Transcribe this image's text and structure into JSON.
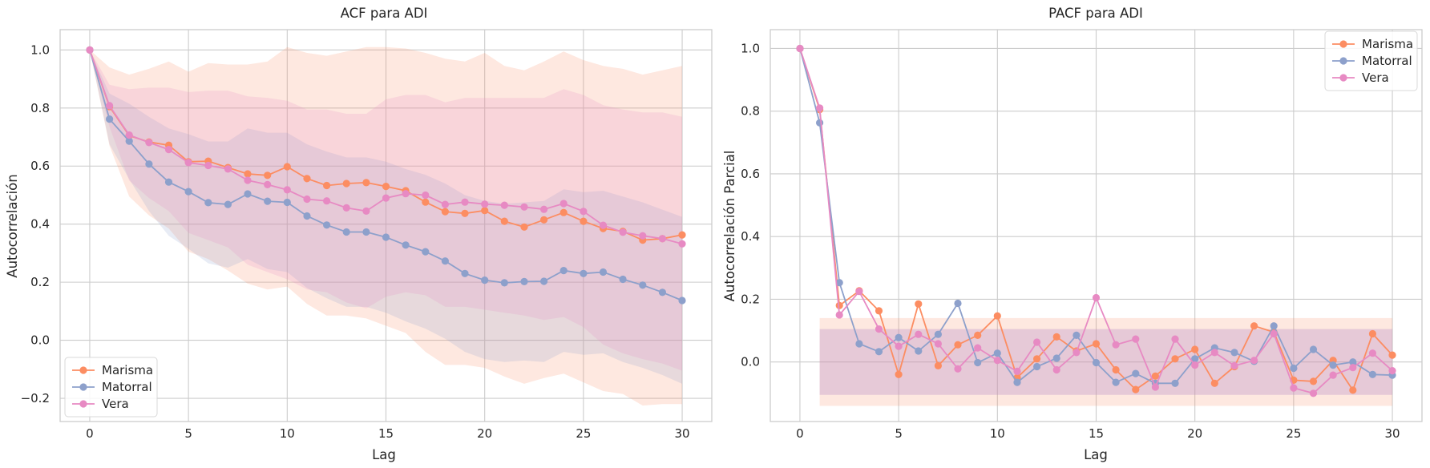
{
  "colors": {
    "Marisma": "#fc8d62",
    "Matorral": "#8da0cb",
    "Vera": "#e78ac3",
    "grid": "#cccccc",
    "frame": "#cccccc"
  },
  "chart_data": [
    {
      "type": "line",
      "title": "ACF para ADI",
      "xlabel": "Lag",
      "ylabel": "Autocorrelación",
      "xlim": [
        -1.5,
        31.5
      ],
      "ylim": [
        -0.28,
        1.07
      ],
      "xticks": [
        0,
        5,
        10,
        15,
        20,
        25,
        30
      ],
      "xtick_labels": [
        "0",
        "5",
        "10",
        "15",
        "20",
        "25",
        "30"
      ],
      "yticks": [
        -0.2,
        0.0,
        0.2,
        0.4,
        0.6,
        0.8,
        1.0
      ],
      "ytick_labels": [
        "−0.2",
        "0.0",
        "0.2",
        "0.4",
        "0.6",
        "0.8",
        "1.0"
      ],
      "grid": true,
      "legend_position": "lower-left",
      "x": [
        0,
        1,
        2,
        3,
        4,
        5,
        6,
        7,
        8,
        9,
        10,
        11,
        12,
        13,
        14,
        15,
        16,
        17,
        18,
        19,
        20,
        21,
        22,
        23,
        24,
        25,
        26,
        27,
        28,
        29,
        30
      ],
      "series": [
        {
          "name": "Marisma",
          "values": [
            1.0,
            0.805,
            0.705,
            0.683,
            0.672,
            0.615,
            0.617,
            0.595,
            0.573,
            0.568,
            0.598,
            0.557,
            0.533,
            0.54,
            0.543,
            0.53,
            0.515,
            0.476,
            0.443,
            0.437,
            0.447,
            0.41,
            0.39,
            0.415,
            0.44,
            0.41,
            0.385,
            0.375,
            0.345,
            0.35,
            0.363
          ],
          "band_upper": [
            1.0,
            0.94,
            0.915,
            0.935,
            0.96,
            0.925,
            0.955,
            0.95,
            0.95,
            0.96,
            1.01,
            0.99,
            0.98,
            0.995,
            1.01,
            1.01,
            1.005,
            0.99,
            0.97,
            0.96,
            0.99,
            0.945,
            0.93,
            0.96,
            0.995,
            0.965,
            0.945,
            0.935,
            0.915,
            0.93,
            0.945
          ],
          "band_lower": [
            1.0,
            0.67,
            0.495,
            0.43,
            0.385,
            0.305,
            0.28,
            0.24,
            0.195,
            0.175,
            0.185,
            0.125,
            0.085,
            0.085,
            0.075,
            0.05,
            0.025,
            -0.04,
            -0.085,
            -0.085,
            -0.095,
            -0.125,
            -0.15,
            -0.13,
            -0.115,
            -0.145,
            -0.175,
            -0.185,
            -0.225,
            -0.22,
            -0.22
          ]
        },
        {
          "name": "Matorral",
          "values": [
            1.0,
            0.762,
            0.686,
            0.607,
            0.545,
            0.512,
            0.474,
            0.468,
            0.504,
            0.479,
            0.475,
            0.428,
            0.397,
            0.373,
            0.373,
            0.355,
            0.328,
            0.305,
            0.273,
            0.23,
            0.207,
            0.198,
            0.202,
            0.203,
            0.24,
            0.23,
            0.235,
            0.21,
            0.19,
            0.165,
            0.137
          ],
          "band_upper": [
            1.0,
            0.85,
            0.815,
            0.77,
            0.73,
            0.71,
            0.685,
            0.685,
            0.73,
            0.715,
            0.715,
            0.675,
            0.65,
            0.63,
            0.63,
            0.615,
            0.59,
            0.57,
            0.54,
            0.5,
            0.48,
            0.47,
            0.475,
            0.48,
            0.52,
            0.51,
            0.515,
            0.495,
            0.475,
            0.45,
            0.425
          ],
          "band_lower": [
            1.0,
            0.675,
            0.555,
            0.445,
            0.36,
            0.315,
            0.265,
            0.25,
            0.28,
            0.245,
            0.235,
            0.18,
            0.145,
            0.115,
            0.115,
            0.095,
            0.065,
            0.04,
            0.005,
            -0.04,
            -0.065,
            -0.075,
            -0.07,
            -0.075,
            -0.04,
            -0.05,
            -0.045,
            -0.075,
            -0.095,
            -0.12,
            -0.15
          ]
        },
        {
          "name": "Vera",
          "values": [
            1.0,
            0.808,
            0.707,
            0.681,
            0.657,
            0.612,
            0.602,
            0.59,
            0.551,
            0.536,
            0.518,
            0.486,
            0.48,
            0.456,
            0.445,
            0.49,
            0.505,
            0.5,
            0.468,
            0.476,
            0.469,
            0.465,
            0.459,
            0.451,
            0.471,
            0.444,
            0.396,
            0.372,
            0.36,
            0.35,
            0.332
          ],
          "band_upper": [
            1.0,
            0.88,
            0.865,
            0.87,
            0.87,
            0.855,
            0.86,
            0.86,
            0.84,
            0.835,
            0.825,
            0.795,
            0.795,
            0.78,
            0.78,
            0.83,
            0.845,
            0.845,
            0.82,
            0.835,
            0.835,
            0.835,
            0.835,
            0.835,
            0.865,
            0.845,
            0.81,
            0.795,
            0.785,
            0.785,
            0.77
          ],
          "band_lower": [
            1.0,
            0.735,
            0.55,
            0.49,
            0.445,
            0.37,
            0.345,
            0.32,
            0.26,
            0.235,
            0.21,
            0.175,
            0.165,
            0.13,
            0.11,
            0.15,
            0.165,
            0.155,
            0.115,
            0.115,
            0.105,
            0.095,
            0.085,
            0.07,
            0.08,
            0.045,
            -0.015,
            -0.045,
            -0.065,
            -0.08,
            -0.105
          ]
        }
      ]
    },
    {
      "type": "line",
      "title": "PACF para ADI",
      "xlabel": "Lag",
      "ylabel": "Autocorrelación Parcial",
      "xlim": [
        -1.5,
        31.5
      ],
      "ylim": [
        -0.19,
        1.06
      ],
      "xticks": [
        0,
        5,
        10,
        15,
        20,
        25,
        30
      ],
      "xtick_labels": [
        "0",
        "5",
        "10",
        "15",
        "20",
        "25",
        "30"
      ],
      "yticks": [
        0.0,
        0.2,
        0.4,
        0.6,
        0.8,
        1.0
      ],
      "ytick_labels": [
        "0.0",
        "0.2",
        "0.4",
        "0.6",
        "0.8",
        "1.0"
      ],
      "grid": true,
      "legend_position": "upper-right",
      "x": [
        0,
        1,
        2,
        3,
        4,
        5,
        6,
        7,
        8,
        9,
        10,
        11,
        12,
        13,
        14,
        15,
        16,
        17,
        18,
        19,
        20,
        21,
        22,
        23,
        24,
        25,
        26,
        27,
        28,
        29,
        30
      ],
      "series": [
        {
          "name": "Marisma",
          "values": [
            1.0,
            0.805,
            0.18,
            0.227,
            0.163,
            -0.04,
            0.185,
            -0.012,
            0.055,
            0.085,
            0.147,
            -0.05,
            0.01,
            0.08,
            0.035,
            0.058,
            -0.025,
            -0.088,
            -0.045,
            0.01,
            0.04,
            -0.068,
            -0.015,
            0.115,
            0.095,
            -0.058,
            -0.062,
            0.005,
            -0.09,
            0.09,
            0.022
          ],
          "band": [
            0.14,
            -0.14
          ],
          "band_lags": [
            1,
            30
          ]
        },
        {
          "name": "Matorral",
          "values": [
            1.0,
            0.763,
            0.253,
            0.058,
            0.033,
            0.078,
            0.035,
            0.088,
            0.187,
            -0.002,
            0.028,
            -0.065,
            -0.015,
            0.012,
            0.085,
            -0.002,
            -0.065,
            -0.037,
            -0.068,
            -0.068,
            0.01,
            0.045,
            0.03,
            0.002,
            0.115,
            -0.02,
            0.04,
            -0.01,
            0.0,
            -0.04,
            -0.042
          ],
          "band": [
            0.105,
            -0.105
          ],
          "band_lags": [
            1,
            30
          ]
        },
        {
          "name": "Vera",
          "values": [
            1.0,
            0.81,
            0.15,
            0.225,
            0.105,
            0.05,
            0.088,
            0.058,
            -0.022,
            0.045,
            0.005,
            -0.03,
            0.063,
            -0.025,
            0.03,
            0.205,
            0.055,
            0.073,
            -0.08,
            0.073,
            -0.01,
            0.03,
            -0.012,
            0.005,
            0.09,
            -0.083,
            -0.1,
            -0.042,
            -0.018,
            0.028,
            -0.028
          ],
          "band": [
            0.105,
            -0.105
          ],
          "band_lags": [
            1,
            30
          ]
        }
      ]
    }
  ]
}
